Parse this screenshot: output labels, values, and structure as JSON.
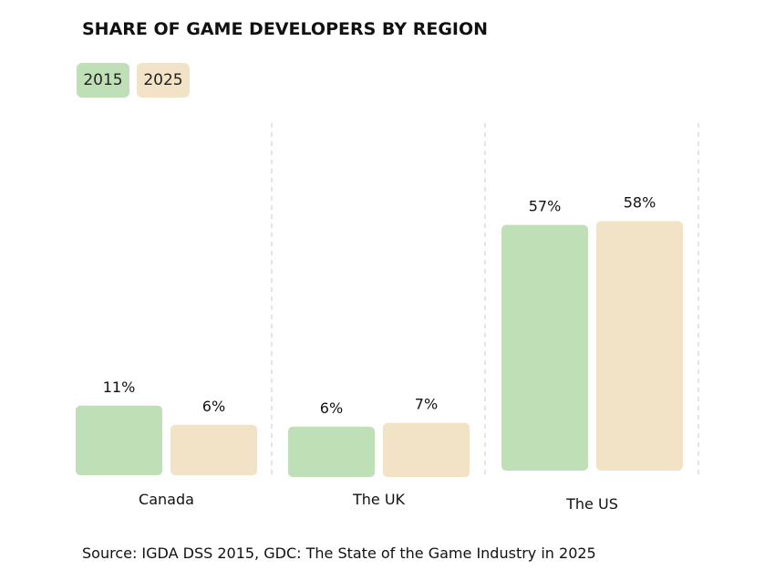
{
  "chart_data": {
    "type": "bar",
    "title": "SHARE OF GAME DEVELOPERS BY REGION",
    "categories": [
      "Canada",
      "The UK",
      "The US"
    ],
    "series": [
      {
        "name": "2015",
        "values": [
          11,
          6,
          57
        ],
        "labels": [
          "11%",
          "6%",
          "57%"
        ],
        "color": "#bfe0b6"
      },
      {
        "name": "2025",
        "values": [
          6,
          7,
          58
        ],
        "labels": [
          "6%",
          "7%",
          "58%"
        ],
        "color": "#f3e3c6"
      }
    ],
    "unit": "%",
    "grid": false,
    "legend_placement": "top-left",
    "source": "Source: IGDA DSS 2015, GDC: The State of the Game Industry in 2025"
  }
}
